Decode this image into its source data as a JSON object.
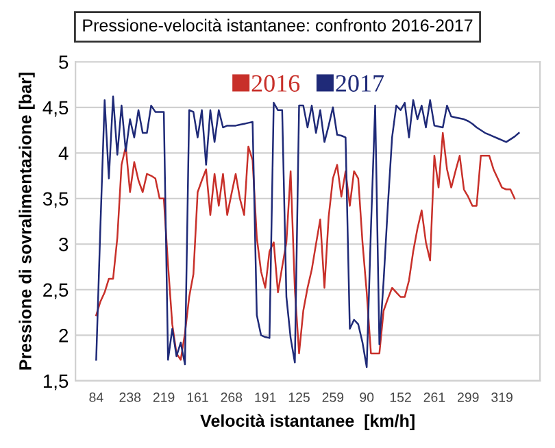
{
  "chart_data": {
    "type": "line",
    "title": "Pressione-velocità istantanee: confronto 2016-2017",
    "xlabel": "Velocità istantanee  [km/h]",
    "ylabel": "Pressione di sovralimentazione [bar]",
    "categories": [
      "84",
      null,
      null,
      null,
      null,
      null,
      null,
      null,
      "238",
      null,
      null,
      null,
      null,
      null,
      null,
      null,
      "219",
      null,
      null,
      null,
      null,
      null,
      null,
      null,
      "161",
      null,
      null,
      null,
      null,
      null,
      null,
      null,
      "268",
      null,
      null,
      null,
      null,
      null,
      null,
      null,
      "191",
      null,
      null,
      null,
      null,
      null,
      null,
      null,
      "125",
      null,
      null,
      null,
      null,
      null,
      null,
      null,
      "259",
      null,
      null,
      null,
      null,
      null,
      null,
      null,
      "90",
      null,
      null,
      null,
      null,
      null,
      null,
      null,
      "152",
      null,
      null,
      null,
      null,
      null,
      null,
      null,
      "261",
      null,
      null,
      null,
      null,
      null,
      null,
      null,
      "299",
      null,
      null,
      null,
      null,
      null,
      null,
      null,
      "319",
      null,
      null,
      null,
      null
    ],
    "ylim": [
      1.5,
      5
    ],
    "yticks": [
      {
        "value": 1.5,
        "label": "1,5"
      },
      2,
      {
        "value": 2.5,
        "label": "2,5"
      },
      3,
      {
        "value": 3.5,
        "label": "3,5"
      },
      4,
      {
        "value": 4.5,
        "label": "4,5"
      },
      5
    ],
    "grid": "y",
    "legend": "top",
    "series": [
      {
        "name": "2016",
        "color": "#c8302a",
        "values": [
          2.22,
          2.37,
          2.47,
          2.62,
          2.62,
          3.07,
          3.87,
          4.07,
          3.57,
          3.9,
          3.7,
          3.57,
          3.77,
          3.75,
          3.72,
          3.5,
          3.5,
          2.77,
          2.12,
          1.8,
          1.73,
          2.02,
          2.42,
          2.67,
          3.57,
          3.7,
          3.82,
          3.32,
          3.77,
          3.42,
          3.77,
          3.32,
          3.55,
          3.77,
          3.5,
          3.32,
          4.07,
          3.92,
          3.07,
          2.7,
          2.52,
          2.92,
          3.02,
          2.47,
          2.75,
          3.02,
          3.8,
          2.5,
          1.8,
          2.27,
          2.52,
          2.72,
          3.0,
          3.27,
          2.52,
          3.3,
          3.72,
          3.87,
          3.52,
          3.8,
          3.42,
          3.8,
          3.72,
          3.02,
          2.47,
          1.8,
          1.8,
          1.8,
          2.27,
          2.4,
          2.52,
          2.47,
          2.42,
          2.42,
          2.6,
          2.92,
          3.17,
          3.37,
          3.02,
          2.82,
          3.97,
          3.62,
          4.22,
          3.82,
          3.62,
          3.8,
          3.97,
          3.6,
          3.52,
          3.42,
          3.42,
          3.97,
          3.97,
          3.97,
          3.82,
          3.72,
          3.62,
          3.6,
          3.6,
          3.5,
          null
        ]
      },
      {
        "name": "2017",
        "color": "#1f2a78",
        "values": [
          1.73,
          3.2,
          4.58,
          3.72,
          4.62,
          3.98,
          4.52,
          4.02,
          4.37,
          4.17,
          4.47,
          4.22,
          4.22,
          4.52,
          4.45,
          4.45,
          4.45,
          1.73,
          2.07,
          1.77,
          1.92,
          1.68,
          4.47,
          4.45,
          4.17,
          4.47,
          3.87,
          4.47,
          4.12,
          4.47,
          4.28,
          4.3,
          4.3,
          4.3,
          4.31,
          4.32,
          4.33,
          4.34,
          2.22,
          2.0,
          1.98,
          1.97,
          4.55,
          4.47,
          4.47,
          2.42,
          1.97,
          1.7,
          4.52,
          4.52,
          4.28,
          4.52,
          4.22,
          4.47,
          4.12,
          4.3,
          4.5,
          4.2,
          4.19,
          4.17,
          2.07,
          2.17,
          2.12,
          1.92,
          1.65,
          3.17,
          4.52,
          1.9,
          2.6,
          3.42,
          4.17,
          4.52,
          4.47,
          4.55,
          4.17,
          4.58,
          4.37,
          4.52,
          4.28,
          4.58,
          4.3,
          4.29,
          4.28,
          4.52,
          4.4,
          4.39,
          4.38,
          4.37,
          4.35,
          4.32,
          4.28,
          4.25,
          4.22,
          4.2,
          4.18,
          4.16,
          4.14,
          4.12,
          4.15,
          4.18,
          4.22
        ]
      }
    ]
  }
}
